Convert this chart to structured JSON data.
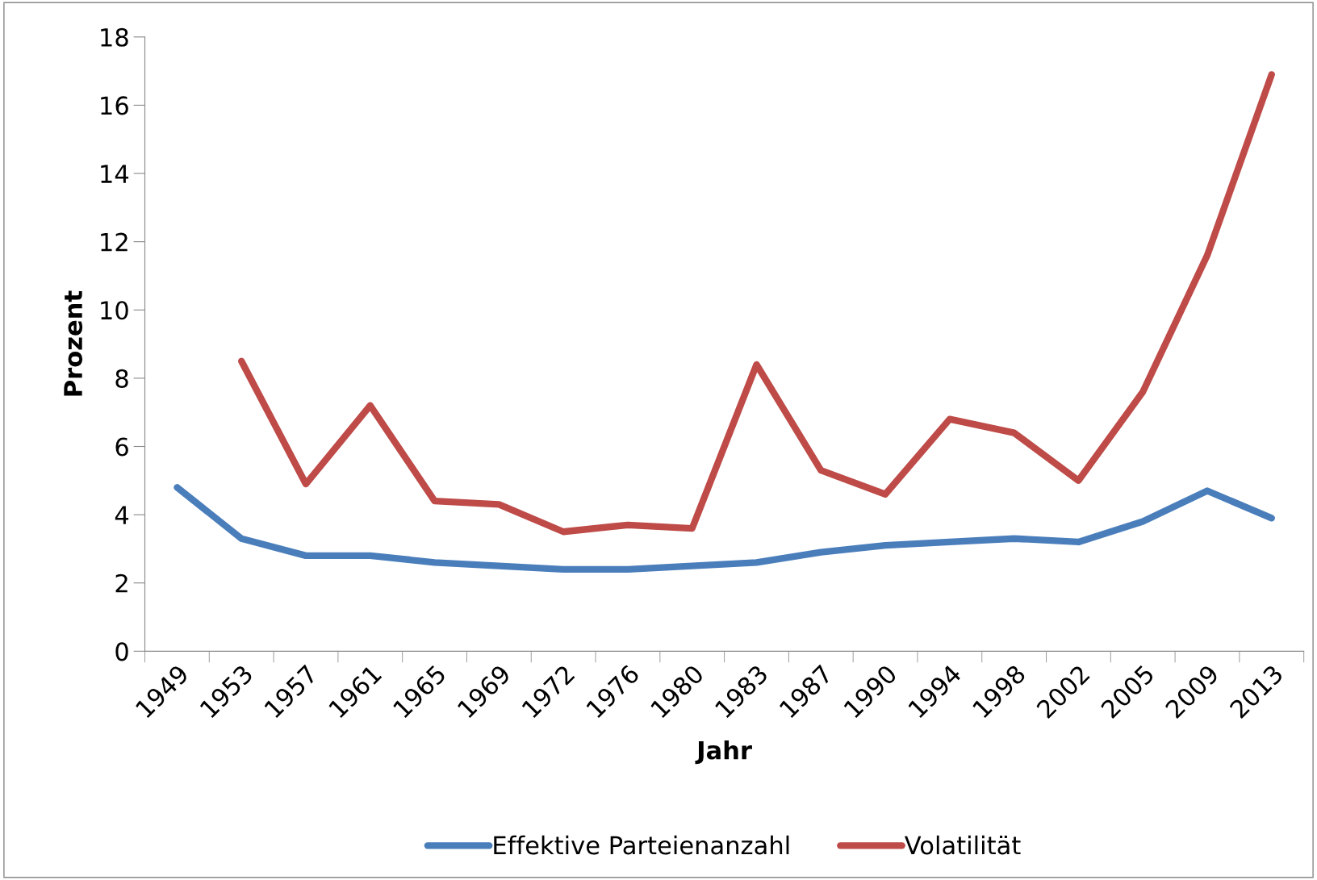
{
  "chart_data": {
    "type": "line",
    "xlabel": "Jahr",
    "ylabel": "Prozent",
    "categories": [
      "1949",
      "1953",
      "1957",
      "1961",
      "1965",
      "1969",
      "1972",
      "1976",
      "1980",
      "1983",
      "1987",
      "1990",
      "1994",
      "1998",
      "2002",
      "2005",
      "2009",
      "2013"
    ],
    "series": [
      {
        "name": "Effektive Parteienanzahl",
        "color": "#4a7ebb",
        "values": [
          4.8,
          3.3,
          2.8,
          2.8,
          2.6,
          2.5,
          2.4,
          2.4,
          2.5,
          2.6,
          2.9,
          3.1,
          3.2,
          3.3,
          3.2,
          3.8,
          4.7,
          3.9
        ]
      },
      {
        "name": "Volatilität",
        "color": "#be4b48",
        "values": [
          null,
          8.5,
          4.9,
          7.2,
          4.4,
          4.3,
          3.5,
          3.7,
          3.6,
          8.4,
          5.3,
          4.6,
          6.8,
          6.4,
          5.0,
          7.6,
          11.6,
          16.9
        ]
      }
    ],
    "ylim": [
      0,
      18
    ],
    "yticks": [
      0,
      2,
      4,
      6,
      8,
      10,
      12,
      14,
      16,
      18
    ],
    "grid": false,
    "legend": "bottom",
    "marker": "none",
    "line_style": "solid"
  }
}
